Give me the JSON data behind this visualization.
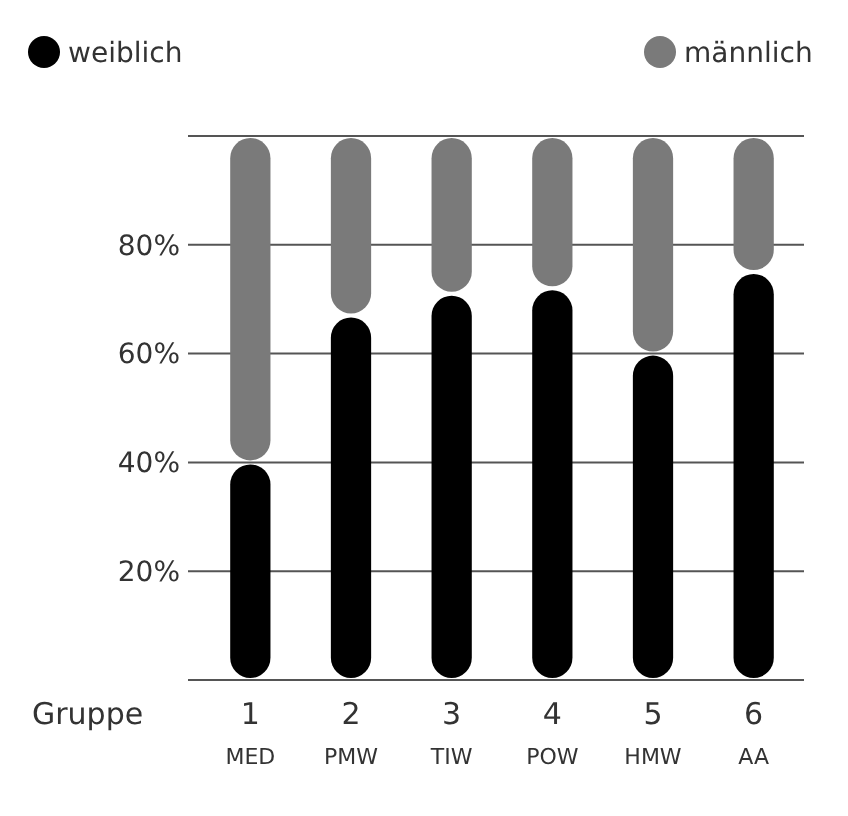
{
  "chart_data": {
    "type": "bar",
    "stacked": true,
    "xlabel": "Gruppe",
    "categories": [
      "1\nMED",
      "2\nPMW",
      "3\nTIW",
      "4\nPOW",
      "5\nHMW",
      "6\nAA"
    ],
    "series": [
      {
        "name": "weiblich",
        "color": "#000000",
        "values": [
          40,
          67,
          71,
          72,
          60,
          75
        ]
      },
      {
        "name": "männlich",
        "color": "#7a7a7a",
        "values": [
          60,
          33,
          29,
          28,
          40,
          25
        ]
      }
    ],
    "ylim": [
      0,
      100
    ],
    "yticks": [
      {
        "value": 0,
        "label": null
      },
      {
        "value": 20,
        "label": "20%"
      },
      {
        "value": 40,
        "label": "40%"
      },
      {
        "value": 60,
        "label": "60%"
      },
      {
        "value": 80,
        "label": "80%"
      },
      {
        "value": 100,
        "label": null
      }
    ],
    "grid": "y",
    "legend": "top"
  }
}
